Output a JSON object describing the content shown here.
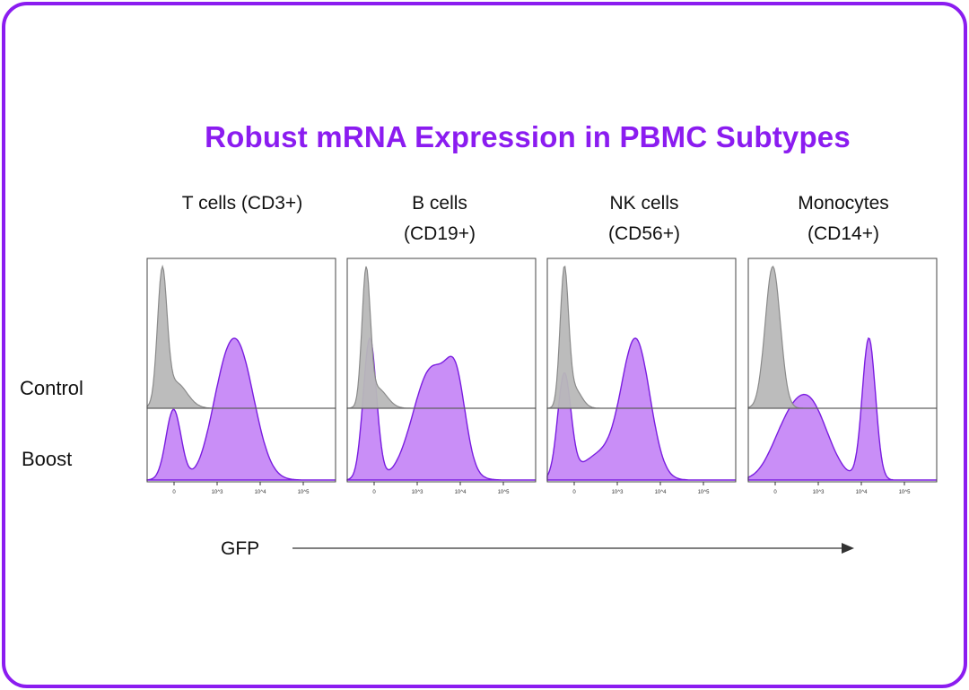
{
  "title": "Robust mRNA Expression in PBMC Subtypes",
  "row_labels": {
    "control": "Control",
    "boost": "Boost"
  },
  "x_axis_label": "GFP",
  "colors": {
    "accent": "#8b1cf0",
    "boost_fill": "#c98ef7",
    "boost_stroke": "#7a1de0",
    "control_fill": "#b8b8b8",
    "control_stroke": "#8a8a8a"
  },
  "chart_data": {
    "type": "area",
    "title": "Robust mRNA Expression in PBMC Subtypes",
    "xlabel": "GFP",
    "x_scale": "log",
    "x_tick_labels": [
      "0",
      "10^3",
      "10^4",
      "10^5"
    ],
    "grid": false,
    "series_names": [
      "Control",
      "Boost"
    ],
    "panels": [
      {
        "label_line1": "T cells (CD3+)",
        "label_line2": "",
        "control": {
          "peaks": [
            {
              "center": 0.08,
              "width": 0.025,
              "height": 1.0
            },
            {
              "center": 0.15,
              "width": 0.06,
              "height": 0.2
            }
          ]
        },
        "boost": {
          "peaks": [
            {
              "center": 0.14,
              "width": 0.04,
              "height": 0.55
            },
            {
              "center": 0.48,
              "width": 0.09,
              "height": 1.0
            },
            {
              "center": 0.38,
              "width": 0.07,
              "height": 0.25
            }
          ]
        }
      },
      {
        "label_line1": "B cells",
        "label_line2": "(CD19+)",
        "control": {
          "peaks": [
            {
              "center": 0.1,
              "width": 0.022,
              "height": 1.0
            },
            {
              "center": 0.16,
              "width": 0.05,
              "height": 0.15
            }
          ]
        },
        "boost": {
          "peaks": [
            {
              "center": 0.12,
              "width": 0.035,
              "height": 0.95
            },
            {
              "center": 0.45,
              "width": 0.1,
              "height": 0.75
            },
            {
              "center": 0.58,
              "width": 0.05,
              "height": 0.45
            }
          ]
        }
      },
      {
        "label_line1": "NK cells",
        "label_line2": "(CD56+)",
        "control": {
          "peaks": [
            {
              "center": 0.09,
              "width": 0.022,
              "height": 1.0
            },
            {
              "center": 0.14,
              "width": 0.04,
              "height": 0.15
            }
          ]
        },
        "boost": {
          "peaks": [
            {
              "center": 0.09,
              "width": 0.035,
              "height": 0.75
            },
            {
              "center": 0.47,
              "width": 0.075,
              "height": 1.0
            },
            {
              "center": 0.28,
              "width": 0.1,
              "height": 0.18
            }
          ]
        }
      },
      {
        "label_line1": "Monocytes",
        "label_line2": "(CD14+)",
        "control": {
          "peaks": [
            {
              "center": 0.13,
              "width": 0.04,
              "height": 1.0
            }
          ]
        },
        "boost": {
          "peaks": [
            {
              "center": 0.32,
              "width": 0.1,
              "height": 0.55
            },
            {
              "center": 0.64,
              "width": 0.035,
              "height": 1.0
            },
            {
              "center": 0.18,
              "width": 0.08,
              "height": 0.2
            }
          ]
        }
      }
    ]
  }
}
